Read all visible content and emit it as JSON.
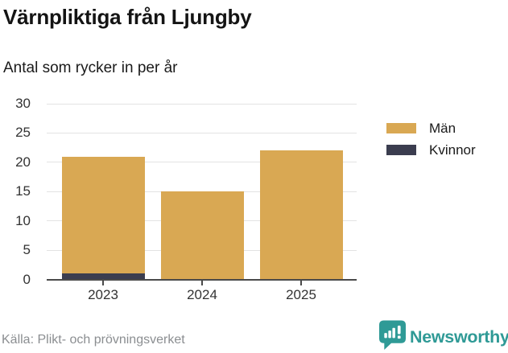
{
  "header": {
    "title": "Värnpliktiga från Ljungby",
    "subtitle": "Antal som rycker in per år"
  },
  "chart_data": {
    "type": "bar",
    "stacked": true,
    "title": "Värnpliktiga från Ljungby",
    "subtitle": "Antal som rycker in per år",
    "categories": [
      "2023",
      "2024",
      "2025"
    ],
    "series": [
      {
        "name": "Män",
        "color": "#d9a853",
        "values": [
          20,
          15,
          22
        ]
      },
      {
        "name": "Kvinnor",
        "color": "#3b3d4f",
        "values": [
          1,
          0,
          0
        ]
      }
    ],
    "stack_totals": [
      21,
      15,
      22
    ],
    "ylim": [
      0,
      30
    ],
    "yticks": [
      0,
      5,
      10,
      15,
      20,
      25,
      30
    ],
    "grid": true,
    "legend_position": "right",
    "colors": {
      "gridline": "#e3e3e3",
      "axis": "#4a4a4a",
      "accent_tan": "#d9a853",
      "accent_dark": "#3b3d4f",
      "brand_teal": "#2f9a96"
    }
  },
  "footer": {
    "source": "Källa: Plikt- och prövningsverket",
    "brand": "Newsworthy"
  }
}
